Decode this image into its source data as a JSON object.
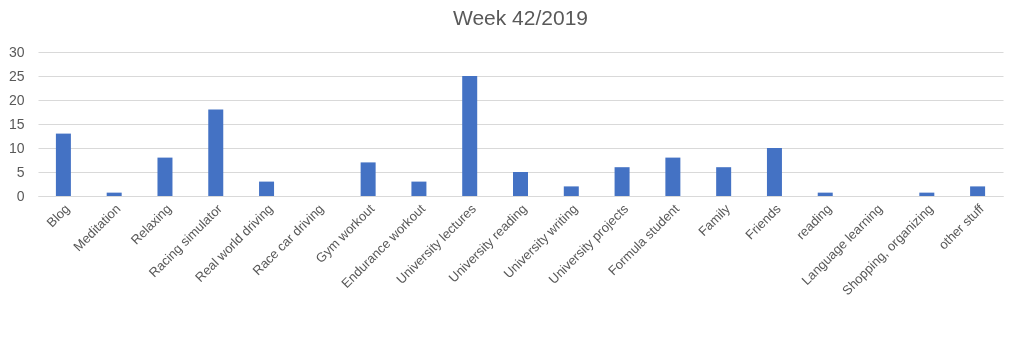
{
  "chart_data": {
    "type": "bar",
    "title": "Week 42/2019",
    "categories": [
      "Blog",
      "Meditation",
      "Relaxing",
      "Racing simulator",
      "Real world driving",
      "Race car driving",
      "Gym workout",
      "Endurance workout",
      "University lectures",
      "University reading",
      "University writing",
      "University projects",
      "Formula student",
      "Family",
      "Friends",
      "reading",
      "Language learning",
      "Shopping, organizing",
      "other stuff"
    ],
    "values": [
      13,
      0.7,
      8,
      18,
      3,
      0,
      7,
      3,
      25,
      5,
      2,
      6,
      8,
      6,
      10,
      0.7,
      0,
      0.7,
      2
    ],
    "color": "#4472c4",
    "ylim": [
      0,
      30
    ],
    "yticks": [
      0,
      5,
      10,
      15,
      20,
      25,
      30
    ],
    "grid": "y"
  }
}
